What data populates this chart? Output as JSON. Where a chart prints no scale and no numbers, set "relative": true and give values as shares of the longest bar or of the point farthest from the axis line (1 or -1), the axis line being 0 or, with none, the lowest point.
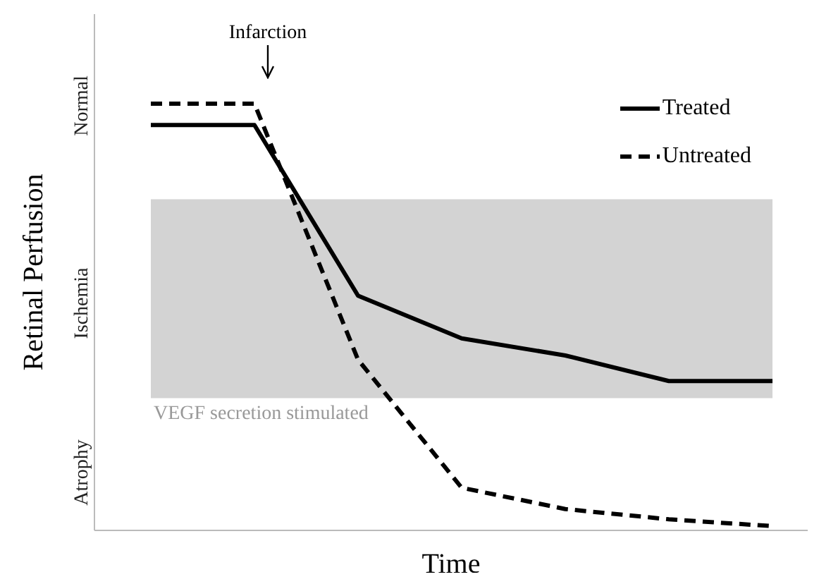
{
  "chart_data": {
    "type": "line",
    "relative": true,
    "xlabel": "Time",
    "ylabel": "Retinal Perfusion",
    "categories": [
      null,
      null,
      null,
      null,
      null,
      null,
      null
    ],
    "series": [
      {
        "name": "Treated",
        "color": "#000000",
        "line_style": "solid",
        "values": [
          0.95,
          0.95,
          0.55,
          0.45,
          0.41,
          0.35,
          0.35
        ]
      },
      {
        "name": "Untreated",
        "color": "#000000",
        "line_style": "dashed",
        "values": [
          1,
          1,
          0.4,
          0.1,
          0.05,
          0.026,
          0.01
        ]
      }
    ],
    "bands": [
      {
        "axis": "y",
        "from": 0.31,
        "to": 0.776,
        "label": "VEGF secretion stimulated",
        "color": "#d3d3d3"
      }
    ],
    "annotations": [
      "Infarction",
      "Normal",
      "Ischemia",
      "Atrophy"
    ],
    "legend": "top right",
    "marker": "none"
  }
}
